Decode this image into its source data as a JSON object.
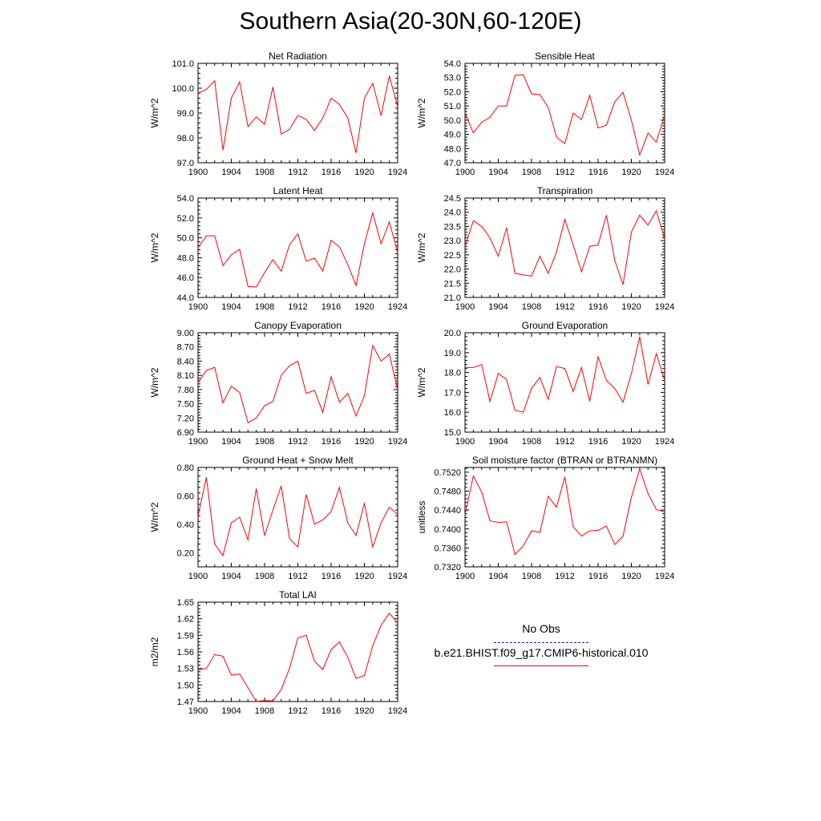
{
  "page_title": "Southern Asia(20-30N,60-120E)",
  "colors": {
    "model_line": "#ff0000",
    "obs_line": "#1a1a8a",
    "axis": "#000000"
  },
  "legend": {
    "obs_label": "No Obs",
    "model_label": "b.e21.BHIST.f09_g17.CMIP6-historical.010"
  },
  "chart_data": [
    {
      "type": "line",
      "title": "Net Radiation",
      "ylabel": "W/m^2",
      "xlim": [
        1900,
        1924
      ],
      "ylim": [
        97.0,
        101.0
      ],
      "xticks": [
        1900,
        1904,
        1908,
        1912,
        1916,
        1920,
        1924
      ],
      "yticks": [
        "97.0",
        "98.0",
        "99.0",
        "100.0",
        "101.0"
      ],
      "series": [
        {
          "x": [
            1900,
            1901,
            1902,
            1903,
            1904,
            1905,
            1906,
            1907,
            1908,
            1909,
            1910,
            1911,
            1912,
            1913,
            1914,
            1915,
            1916,
            1917,
            1918,
            1919,
            1920,
            1921,
            1922,
            1923,
            1924
          ],
          "y": [
            99.8,
            99.95,
            100.3,
            97.5,
            99.6,
            100.25,
            98.45,
            98.85,
            98.55,
            100.05,
            98.15,
            98.35,
            98.9,
            98.75,
            98.3,
            98.8,
            99.6,
            99.35,
            98.8,
            97.4,
            99.6,
            100.2,
            98.9,
            100.5,
            99.25
          ]
        }
      ]
    },
    {
      "type": "line",
      "title": "Sensible Heat",
      "ylabel": "W/m^2",
      "xlim": [
        1900,
        1924
      ],
      "ylim": [
        47.0,
        54.0
      ],
      "xticks": [
        1900,
        1904,
        1908,
        1912,
        1916,
        1920,
        1924
      ],
      "yticks": [
        "47.0",
        "48.0",
        "49.0",
        "50.0",
        "51.0",
        "52.0",
        "53.0",
        "54.0"
      ],
      "series": [
        {
          "x": [
            1900,
            1901,
            1902,
            1903,
            1904,
            1905,
            1906,
            1907,
            1908,
            1909,
            1910,
            1911,
            1912,
            1913,
            1914,
            1915,
            1916,
            1917,
            1918,
            1919,
            1920,
            1921,
            1922,
            1923,
            1924
          ],
          "y": [
            50.5,
            49.1,
            49.85,
            50.2,
            51.0,
            51.0,
            53.15,
            53.2,
            51.85,
            51.8,
            50.9,
            48.8,
            48.35,
            50.5,
            50.05,
            51.75,
            49.45,
            49.65,
            51.3,
            51.95,
            50.0,
            47.55,
            49.1,
            48.45,
            50.35
          ]
        }
      ]
    },
    {
      "type": "line",
      "title": "Latent Heat",
      "ylabel": "W/m^2",
      "xlim": [
        1900,
        1924
      ],
      "ylim": [
        44.0,
        54.0
      ],
      "xticks": [
        1900,
        1904,
        1908,
        1912,
        1916,
        1920,
        1924
      ],
      "yticks": [
        "44.0",
        "46.0",
        "48.0",
        "50.0",
        "52.0",
        "54.0"
      ],
      "series": [
        {
          "x": [
            1900,
            1901,
            1902,
            1903,
            1904,
            1905,
            1906,
            1907,
            1908,
            1909,
            1910,
            1911,
            1912,
            1913,
            1914,
            1915,
            1916,
            1917,
            1918,
            1919,
            1920,
            1921,
            1922,
            1923,
            1924
          ],
          "y": [
            49.0,
            50.2,
            50.2,
            47.2,
            48.3,
            48.85,
            45.1,
            45.05,
            46.5,
            47.8,
            46.65,
            49.3,
            50.4,
            47.65,
            47.95,
            46.65,
            49.75,
            49.1,
            47.3,
            45.2,
            49.4,
            52.5,
            49.4,
            51.6,
            48.5
          ]
        }
      ]
    },
    {
      "type": "line",
      "title": "Transpiration",
      "ylabel": "W/m^2",
      "xlim": [
        1900,
        1924
      ],
      "ylim": [
        21.0,
        24.5
      ],
      "xticks": [
        1900,
        1904,
        1908,
        1912,
        1916,
        1920,
        1924
      ],
      "yticks": [
        "21.0",
        "21.5",
        "22.0",
        "22.5",
        "23.0",
        "23.5",
        "24.0",
        "24.5"
      ],
      "series": [
        {
          "x": [
            1900,
            1901,
            1902,
            1903,
            1904,
            1905,
            1906,
            1907,
            1908,
            1909,
            1910,
            1911,
            1912,
            1913,
            1914,
            1915,
            1916,
            1917,
            1918,
            1919,
            1920,
            1921,
            1922,
            1923,
            1924
          ],
          "y": [
            22.8,
            23.7,
            23.5,
            23.1,
            22.45,
            23.45,
            21.85,
            21.8,
            21.75,
            22.45,
            21.85,
            22.6,
            23.75,
            22.85,
            21.9,
            22.8,
            22.85,
            23.9,
            22.3,
            21.45,
            23.3,
            23.9,
            23.55,
            24.05,
            23.05
          ]
        }
      ]
    },
    {
      "type": "line",
      "title": "Canopy Evaporation",
      "ylabel": "W/m^2",
      "xlim": [
        1900,
        1924
      ],
      "ylim": [
        6.9,
        9.0
      ],
      "xticks": [
        1900,
        1904,
        1908,
        1912,
        1916,
        1920,
        1924
      ],
      "yticks": [
        "6.90",
        "7.20",
        "7.50",
        "7.80",
        "8.10",
        "8.40",
        "8.70",
        "9.00"
      ],
      "series": [
        {
          "x": [
            1900,
            1901,
            1902,
            1903,
            1904,
            1905,
            1906,
            1907,
            1908,
            1909,
            1910,
            1911,
            1912,
            1913,
            1914,
            1915,
            1916,
            1917,
            1918,
            1919,
            1920,
            1921,
            1922,
            1923,
            1924
          ],
          "y": [
            7.95,
            8.2,
            8.27,
            7.52,
            7.87,
            7.74,
            7.1,
            7.2,
            7.46,
            7.55,
            8.1,
            8.3,
            8.4,
            7.72,
            7.78,
            7.32,
            8.07,
            7.53,
            7.72,
            7.24,
            7.67,
            8.73,
            8.4,
            8.55,
            7.8
          ]
        }
      ]
    },
    {
      "type": "line",
      "title": "Ground Evaporation",
      "ylabel": "W/m^2",
      "xlim": [
        1900,
        1924
      ],
      "ylim": [
        15.0,
        20.0
      ],
      "xticks": [
        1900,
        1904,
        1908,
        1912,
        1916,
        1920,
        1924
      ],
      "yticks": [
        "15.0",
        "16.0",
        "17.0",
        "18.0",
        "19.0",
        "20.0"
      ],
      "series": [
        {
          "x": [
            1900,
            1901,
            1902,
            1903,
            1904,
            1905,
            1906,
            1907,
            1908,
            1909,
            1910,
            1911,
            1912,
            1913,
            1914,
            1915,
            1916,
            1917,
            1918,
            1919,
            1920,
            1921,
            1922,
            1923,
            1924
          ],
          "y": [
            18.25,
            18.25,
            18.4,
            16.55,
            17.95,
            17.65,
            16.1,
            16.0,
            17.2,
            17.75,
            16.65,
            18.3,
            18.2,
            17.05,
            18.25,
            16.55,
            18.8,
            17.6,
            17.2,
            16.5,
            17.95,
            19.8,
            17.4,
            18.95,
            17.6
          ]
        }
      ]
    },
    {
      "type": "line",
      "title": "Ground Heat + Snow Melt",
      "ylabel": "W/m^2",
      "xlim": [
        1900,
        1924
      ],
      "ylim": [
        0.1,
        0.8
      ],
      "xticks": [
        1900,
        1904,
        1908,
        1912,
        1916,
        1920,
        1924
      ],
      "yticks": [
        "0.20",
        "0.40",
        "0.60",
        "0.80"
      ],
      "series": [
        {
          "x": [
            1900,
            1901,
            1902,
            1903,
            1904,
            1905,
            1906,
            1907,
            1908,
            1909,
            1910,
            1911,
            1912,
            1913,
            1914,
            1915,
            1916,
            1917,
            1918,
            1919,
            1920,
            1921,
            1922,
            1923,
            1924
          ],
          "y": [
            0.46,
            0.73,
            0.26,
            0.18,
            0.41,
            0.45,
            0.29,
            0.65,
            0.32,
            0.5,
            0.67,
            0.3,
            0.24,
            0.61,
            0.4,
            0.43,
            0.49,
            0.66,
            0.41,
            0.32,
            0.55,
            0.24,
            0.41,
            0.52,
            0.47
          ]
        }
      ]
    },
    {
      "type": "line",
      "title": "Soil moisture factor (BTRAN or BTRANMN)",
      "ylabel": "unitless",
      "xlim": [
        1900,
        1924
      ],
      "ylim": [
        0.732,
        0.753
      ],
      "xticks": [
        1900,
        1904,
        1908,
        1912,
        1916,
        1920,
        1924
      ],
      "yticks": [
        "0.7320",
        "0.7360",
        "0.7400",
        "0.7440",
        "0.7480",
        "0.7520"
      ],
      "series": [
        {
          "x": [
            1900,
            1901,
            1902,
            1903,
            1904,
            1905,
            1906,
            1907,
            1908,
            1909,
            1910,
            1911,
            1912,
            1913,
            1914,
            1915,
            1916,
            1917,
            1918,
            1919,
            1920,
            1921,
            1922,
            1923,
            1924
          ],
          "y": [
            0.743,
            0.7512,
            0.7478,
            0.7417,
            0.7414,
            0.7415,
            0.7346,
            0.7364,
            0.7396,
            0.7393,
            0.7469,
            0.7446,
            0.751,
            0.7405,
            0.7385,
            0.7396,
            0.7397,
            0.7406,
            0.7367,
            0.7385,
            0.7467,
            0.7527,
            0.7475,
            0.7441,
            0.7436
          ]
        }
      ]
    },
    {
      "type": "line",
      "title": "Total LAI",
      "ylabel": "m2/m2",
      "xlim": [
        1900,
        1924
      ],
      "ylim": [
        1.47,
        1.65
      ],
      "xticks": [
        1900,
        1904,
        1908,
        1912,
        1916,
        1920,
        1924
      ],
      "yticks": [
        "1.47",
        "1.50",
        "1.53",
        "1.56",
        "1.59",
        "1.62",
        "1.65"
      ],
      "series": [
        {
          "x": [
            1900,
            1901,
            1902,
            1903,
            1904,
            1905,
            1906,
            1907,
            1908,
            1909,
            1910,
            1911,
            1912,
            1913,
            1914,
            1915,
            1916,
            1917,
            1918,
            1919,
            1920,
            1921,
            1922,
            1923,
            1924
          ],
          "y": [
            1.527,
            1.53,
            1.555,
            1.552,
            1.518,
            1.52,
            1.495,
            1.47,
            1.472,
            1.471,
            1.492,
            1.53,
            1.585,
            1.59,
            1.543,
            1.528,
            1.564,
            1.578,
            1.55,
            1.512,
            1.517,
            1.571,
            1.608,
            1.63,
            1.612
          ]
        }
      ]
    }
  ]
}
